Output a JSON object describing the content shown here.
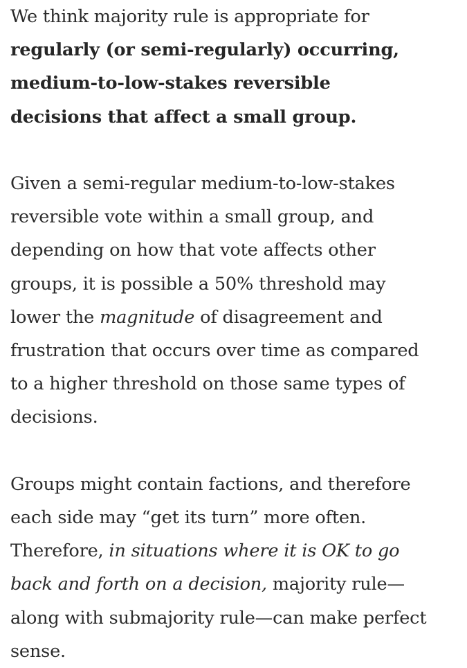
{
  "paragraph1": {
    "lead": "We think majority rule is appropriate for ",
    "bold_line1": "regularly (or semi-regularly) occurring,",
    "bold_line2": "medium-to-low-stakes reversible",
    "bold_line3": "decisions that affect a small group."
  },
  "paragraph2": {
    "line1": "Given a semi-regular medium-to-low-stakes",
    "line2": "reversible vote within a small group, and",
    "line3": "depending on how that vote affects other",
    "line4": "groups, it is possible a 50% threshold may",
    "line5_pre": "lower the ",
    "line5_italic": "magnitude",
    "line5_post": " of disagreement and",
    "line6": "frustration that occurs over time as compared",
    "line7": "to a higher threshold on those same types of",
    "line8": "decisions."
  },
  "paragraph3": {
    "line1": "Groups might contain factions, and therefore",
    "line2": "each side may “get its turn” more often.",
    "line3_pre": "Therefore, ",
    "line3_italic": "in situations where it is OK to go",
    "line4_italic": "back and forth on a decision,",
    "line4_post": " majority rule—",
    "line5": "along with submajority rule—can make perfect",
    "line6": "sense."
  }
}
